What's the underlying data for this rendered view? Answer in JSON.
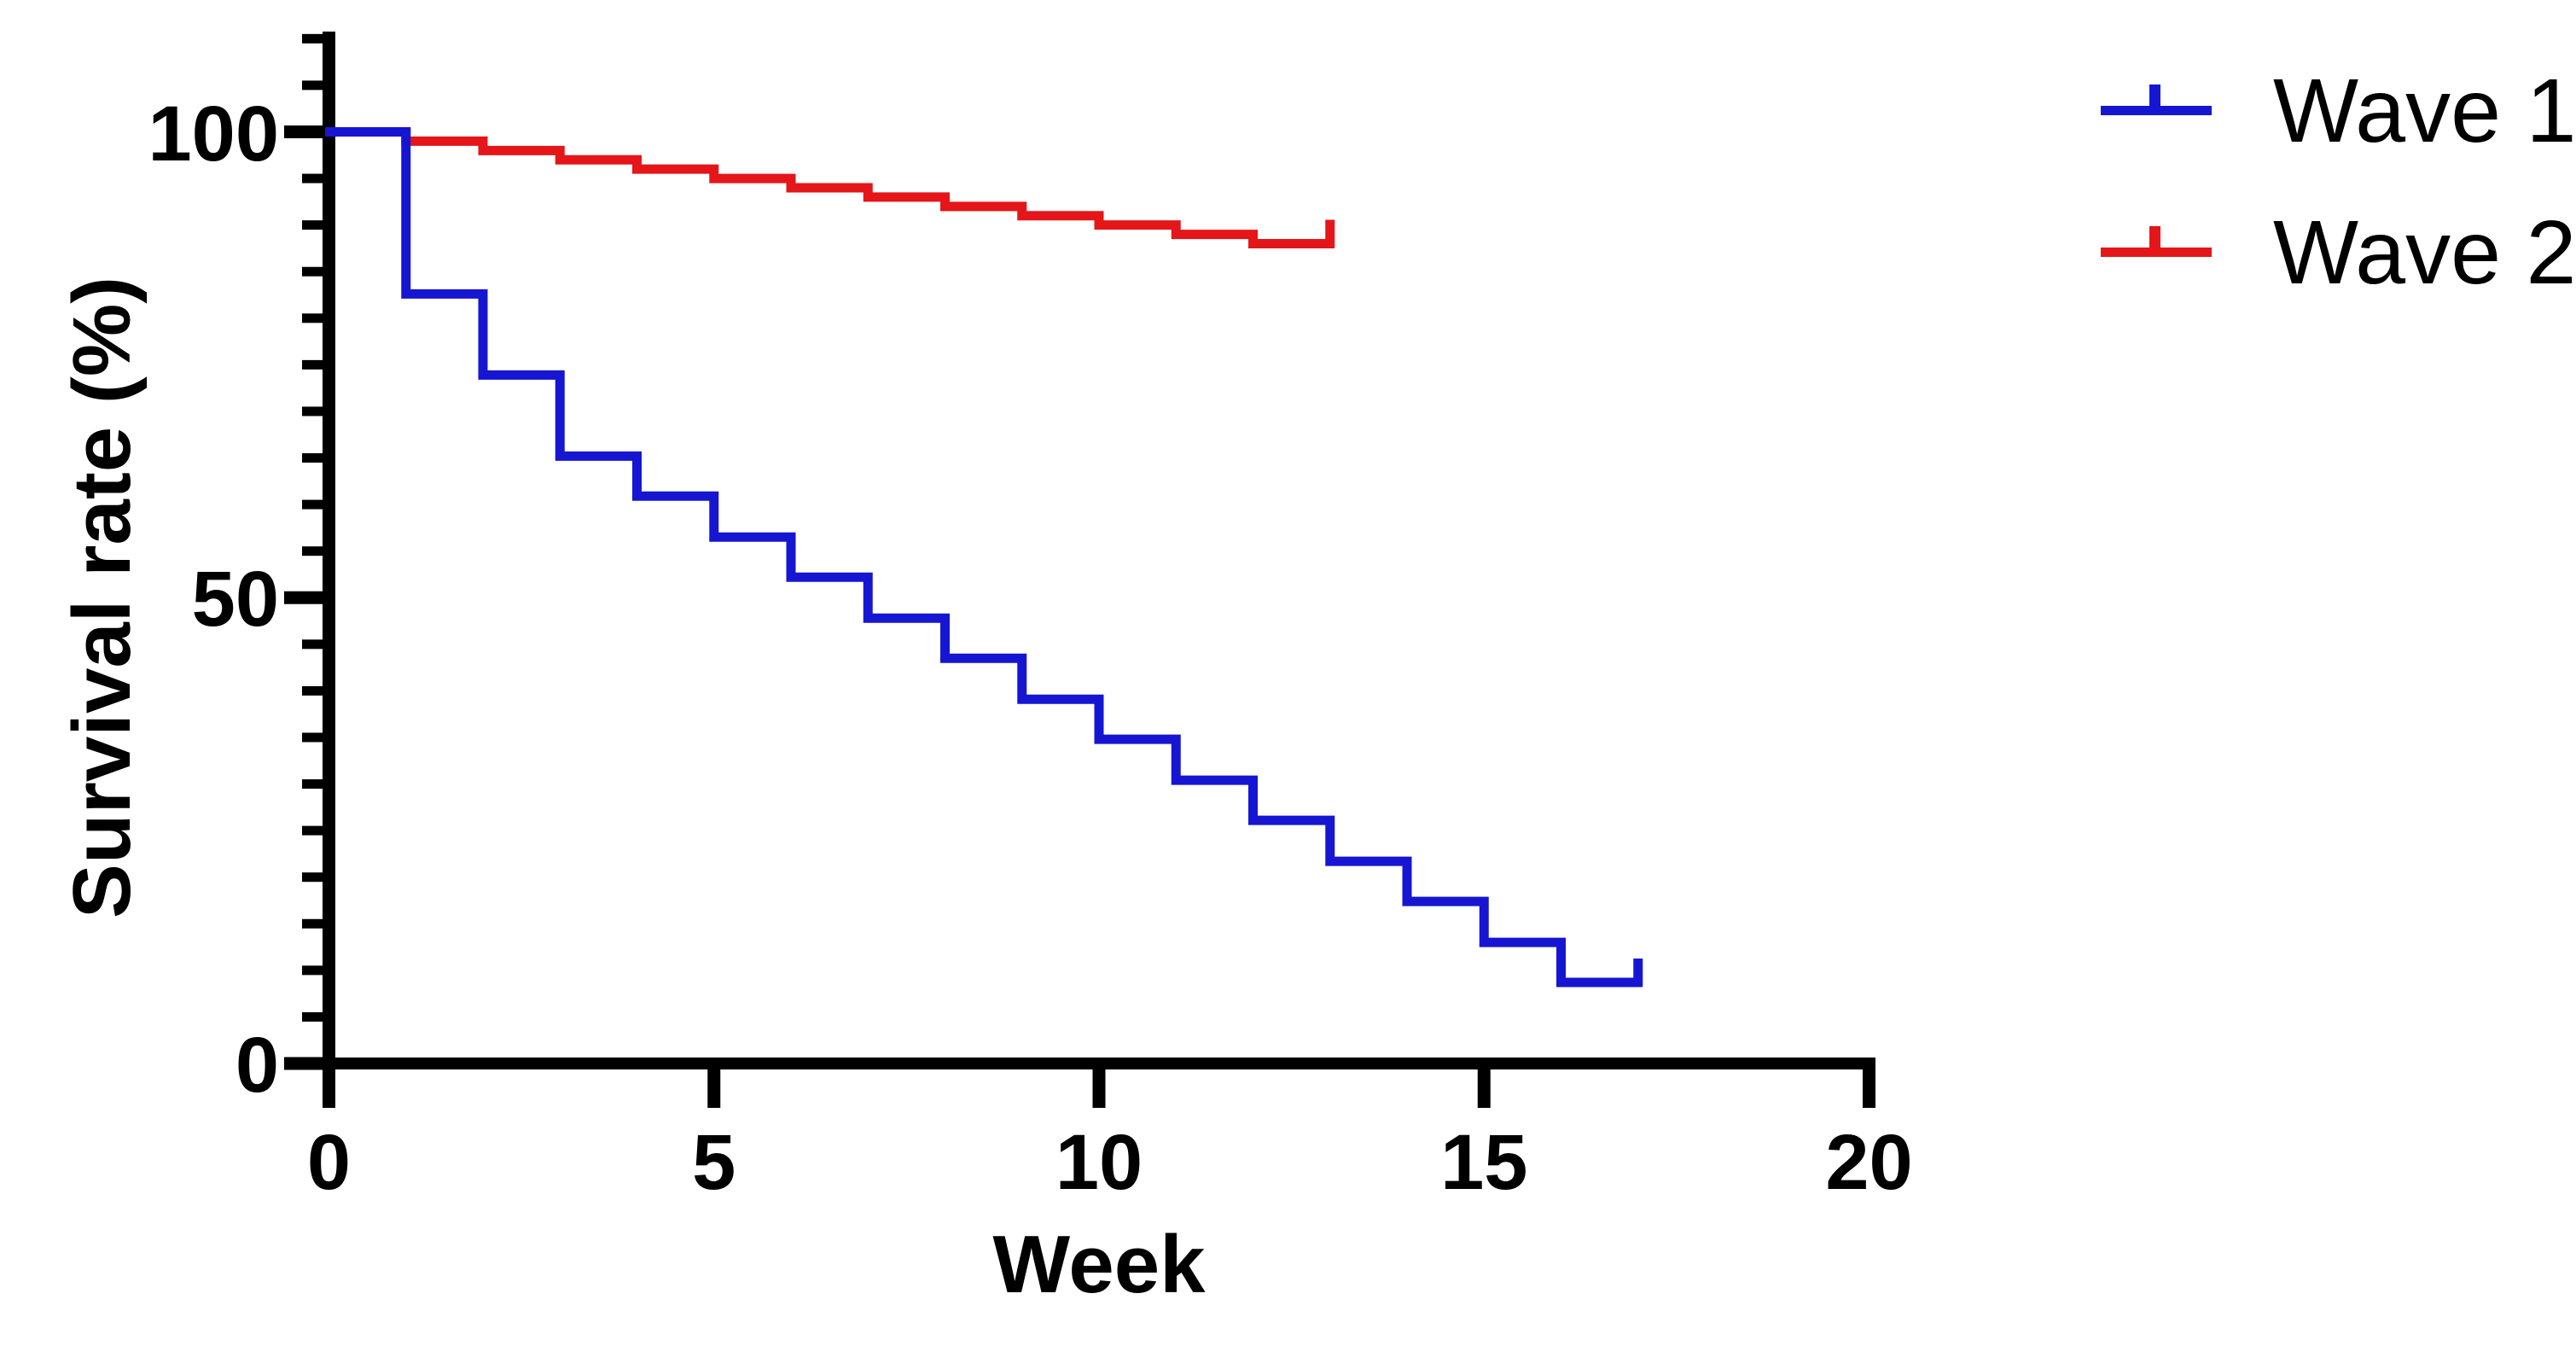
{
  "chart_data": {
    "type": "line",
    "subtype": "kaplan-meier-step-survival",
    "title": "",
    "xlabel": "Week",
    "ylabel": "Survival rate (%)",
    "xlim": [
      0,
      20
    ],
    "ylim": [
      0,
      110
    ],
    "x_ticks": [
      "0",
      "5",
      "10",
      "15",
      "20"
    ],
    "x_tick_values": [
      0,
      5,
      10,
      15,
      20
    ],
    "y_ticks_major": [
      "0",
      "50",
      "100"
    ],
    "y_tick_major_values": [
      0,
      50,
      100
    ],
    "y_minor_tick_step": 5,
    "y_minor_tick_max": 110,
    "grid": false,
    "legend_position": "top-right",
    "axis_color": "#000000",
    "series": [
      {
        "name": "Wave 1",
        "color": "#1616D2",
        "note": "survival % after the drop occurring at each week; step curve",
        "points": [
          [
            0,
            100
          ],
          [
            1,
            82.6
          ],
          [
            2,
            73.9
          ],
          [
            3,
            65.2
          ],
          [
            4,
            60.9
          ],
          [
            5,
            56.5
          ],
          [
            6,
            52.2
          ],
          [
            7,
            47.8
          ],
          [
            8,
            43.5
          ],
          [
            9,
            39.1
          ],
          [
            10,
            34.8
          ],
          [
            11,
            30.4
          ],
          [
            12,
            26.1
          ],
          [
            13,
            21.7
          ],
          [
            14,
            17.4
          ],
          [
            15,
            13.0
          ],
          [
            16,
            8.7
          ]
        ],
        "end_week": 17,
        "censor_marks": [
          [
            17,
            8.7
          ]
        ]
      },
      {
        "name": "Wave 2",
        "color": "#E41619",
        "note": "survival % after the drop occurring at each week; step curve",
        "points": [
          [
            0,
            100
          ],
          [
            1,
            99
          ],
          [
            2,
            98
          ],
          [
            3,
            97
          ],
          [
            4,
            96
          ],
          [
            5,
            95
          ],
          [
            6,
            94
          ],
          [
            7,
            93
          ],
          [
            8,
            92
          ],
          [
            9,
            91
          ],
          [
            10,
            90
          ],
          [
            11,
            89
          ],
          [
            12,
            88
          ]
        ],
        "end_week": 13,
        "censor_marks": [
          [
            13,
            88
          ]
        ]
      }
    ]
  }
}
